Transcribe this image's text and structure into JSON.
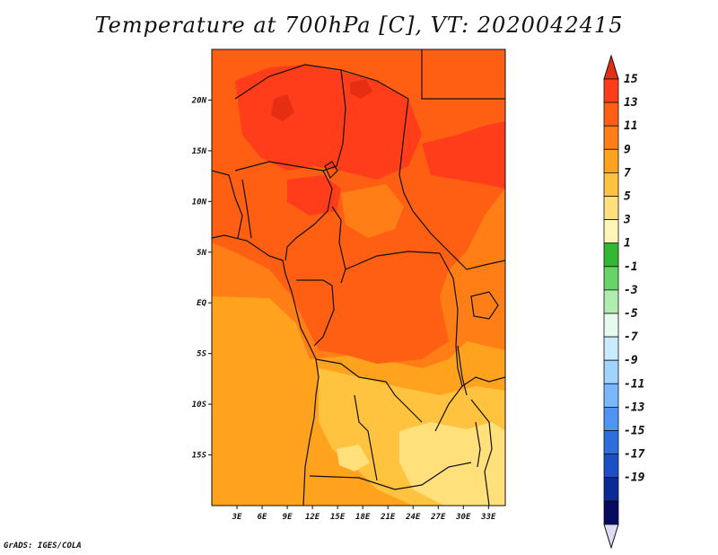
{
  "title": "Temperature at 700hPa [C], VT: 2020042415",
  "credit": "GrADS: IGES/COLA",
  "map": {
    "region": "Central Africa",
    "lon_range": [
      0,
      35
    ],
    "lat_range": [
      -20,
      25
    ],
    "lat_ticks": [
      "20N",
      "15N",
      "10N",
      "5N",
      "EQ",
      "5S",
      "10S",
      "15S"
    ],
    "lon_ticks": [
      "3E",
      "6E",
      "9E",
      "12E",
      "15E",
      "18E",
      "21E",
      "24E",
      "27E",
      "30E",
      "33E"
    ]
  },
  "colorbar": {
    "labels": [
      "15",
      "13",
      "11",
      "9",
      "7",
      "5",
      "3",
      "1",
      "-1",
      "-3",
      "-5",
      "-7",
      "-9",
      "-11",
      "-13",
      "-15",
      "-17",
      "-19"
    ],
    "colors": [
      "#ff3d1a",
      "#ff5f12",
      "#ff7f16",
      "#ffa21e",
      "#ffc340",
      "#ffe07a",
      "#fff5b8",
      "#33b833",
      "#66d466",
      "#b0ecb0",
      "#e8faf0",
      "#c8ecff",
      "#a0d4ff",
      "#78b8ff",
      "#4f94f5",
      "#2e6fe0",
      "#1a4fc8",
      "#0a2a98",
      "#060a60"
    ],
    "over_color": "#e62e12",
    "under_color": "#dcdcf5"
  }
}
